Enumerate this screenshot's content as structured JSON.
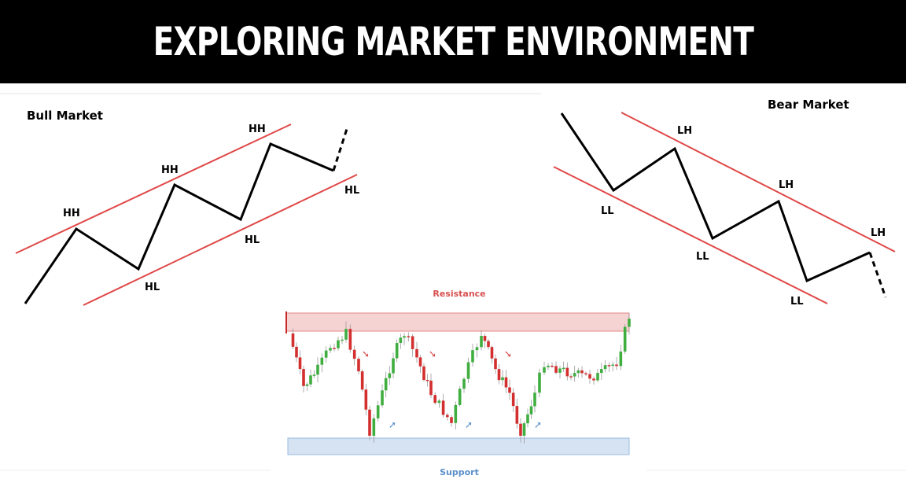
{
  "title": "EXPLORING MARKET ENVIRONMENT",
  "bull": {
    "heading": "Bull Market",
    "labels": {
      "hh1": "HH",
      "hh2": "HH",
      "hh3": "HH",
      "hl1": "HL",
      "hl2": "HL",
      "hl3": "HL"
    }
  },
  "bear": {
    "heading": "Bear Market",
    "labels": {
      "lh1": "LH",
      "lh2": "LH",
      "lh3": "LH",
      "ll1": "LL",
      "ll2": "LL",
      "ll3": "LL"
    }
  },
  "range": {
    "resistance": "Resistance",
    "support": "Support"
  },
  "colors": {
    "trendline": "#e04848",
    "price": "#000000",
    "resistance_zone": "#f6d3d3",
    "support_zone": "#d5e3f2",
    "resistance_text": "#d85050",
    "support_text": "#5b8fc9",
    "up_candle": "#3fae3f",
    "down_candle": "#d32f2f"
  }
}
